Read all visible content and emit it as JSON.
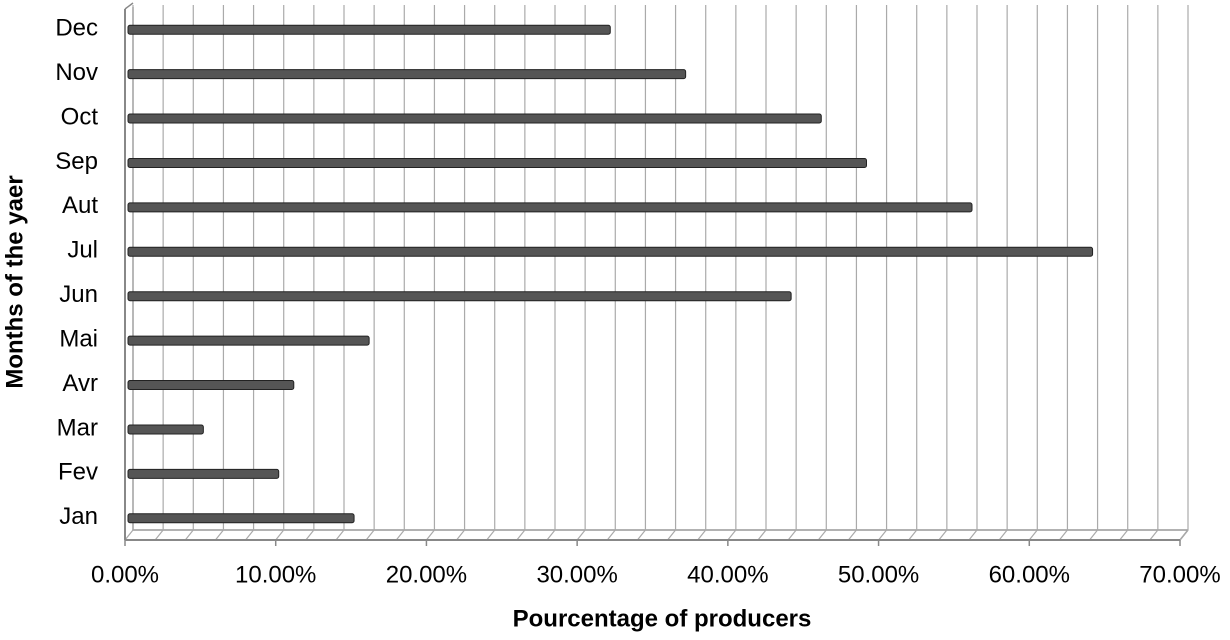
{
  "chart_data": {
    "type": "hbar",
    "xlabel": "Pourcentage of producers",
    "ylabel": "Months  of the yaer",
    "categories": [
      "Jan",
      "Fev",
      "Mar",
      "Avr",
      "Mai",
      "Jun",
      "Jul",
      "Aut",
      "Sep",
      "Oct",
      "Nov",
      "Dec"
    ],
    "values": [
      15,
      10,
      5,
      11,
      16,
      44,
      64,
      56,
      49,
      46,
      37,
      32
    ],
    "color": "#555555",
    "xlim": [
      0,
      70
    ],
    "xticks": [
      {
        "value": 0,
        "label": "0.00%"
      },
      {
        "value": 10,
        "label": "10.00%"
      },
      {
        "value": 20,
        "label": "20.00%"
      },
      {
        "value": 30,
        "label": "30.00%"
      },
      {
        "value": 40,
        "label": "40.00%"
      },
      {
        "value": 50,
        "label": "50.00%"
      },
      {
        "value": 60,
        "label": "60.00%"
      },
      {
        "value": 70,
        "label": "70.00%"
      }
    ],
    "xgrid": [
      0,
      2,
      4,
      6,
      8,
      10,
      12,
      14,
      16,
      18,
      20,
      22,
      24,
      26,
      28,
      30,
      32,
      34,
      36,
      38,
      40,
      42,
      44,
      46,
      48,
      50,
      52,
      54,
      56,
      58,
      60,
      62,
      64,
      66,
      68,
      70
    ],
    "grid": true
  }
}
